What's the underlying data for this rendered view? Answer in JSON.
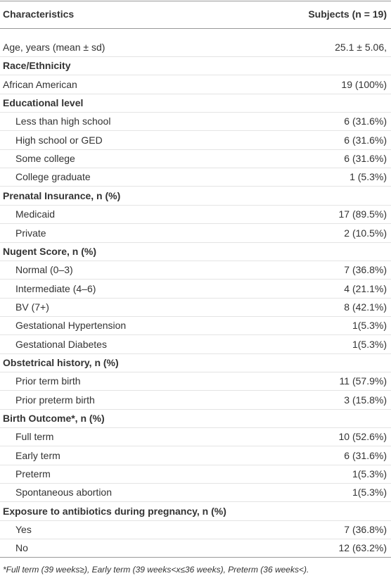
{
  "table": {
    "header": [
      "Characteristics",
      "Subjects (n = 19)"
    ],
    "first_row": [
      "Age, years (mean ± sd)",
      "25.1 ± 5.06,"
    ],
    "sections": [
      {
        "title": "Race/Ethnicity",
        "rows": [
          [
            "African American",
            "19 (100%)"
          ]
        ]
      },
      {
        "title": "Educational level",
        "rows": [
          [
            "Less than high school",
            "6 (31.6%)"
          ],
          [
            "High school or GED",
            "6 (31.6%)"
          ],
          [
            "Some college",
            "6 (31.6%)"
          ],
          [
            "College graduate",
            "1 (5.3%)"
          ]
        ]
      },
      {
        "title": "Prenatal Insurance, n (%)",
        "rows": [
          [
            "Medicaid",
            "17 (89.5%)"
          ],
          [
            "Private",
            "2 (10.5%)"
          ]
        ]
      },
      {
        "title": "Nugent Score, n (%)",
        "rows": [
          [
            "Normal (0–3)",
            "7 (36.8%)"
          ],
          [
            "Intermediate (4–6)",
            "4 (21.1%)"
          ],
          [
            "BV (7+)",
            "8 (42.1%)"
          ],
          [
            "Gestational Hypertension",
            "1(5.3%)"
          ],
          [
            "Gestational Diabetes",
            "1(5.3%)"
          ]
        ]
      },
      {
        "title": "Obstetrical history, n (%)",
        "rows": [
          [
            "Prior term birth",
            "11 (57.9%)"
          ],
          [
            "Prior preterm birth",
            "3 (15.8%)"
          ]
        ]
      },
      {
        "title": "Birth Outcome*, n (%)",
        "rows": [
          [
            "Full term",
            "10 (52.6%)"
          ],
          [
            "Early term",
            "6 (31.6%)"
          ],
          [
            "Preterm",
            "1(5.3%)"
          ],
          [
            "Spontaneous abortion",
            "1(5.3%)"
          ]
        ]
      },
      {
        "title": "Exposure to antibiotics during pregnancy, n (%)",
        "rows": [
          [
            "Yes",
            "7 (36.8%)"
          ],
          [
            "No",
            "12 (63.2%)"
          ]
        ]
      }
    ],
    "footnote": "*Full term (39 weeks≥), Early term (39 weeks<x≤36 weeks), Preterm (36 weeks<)."
  }
}
